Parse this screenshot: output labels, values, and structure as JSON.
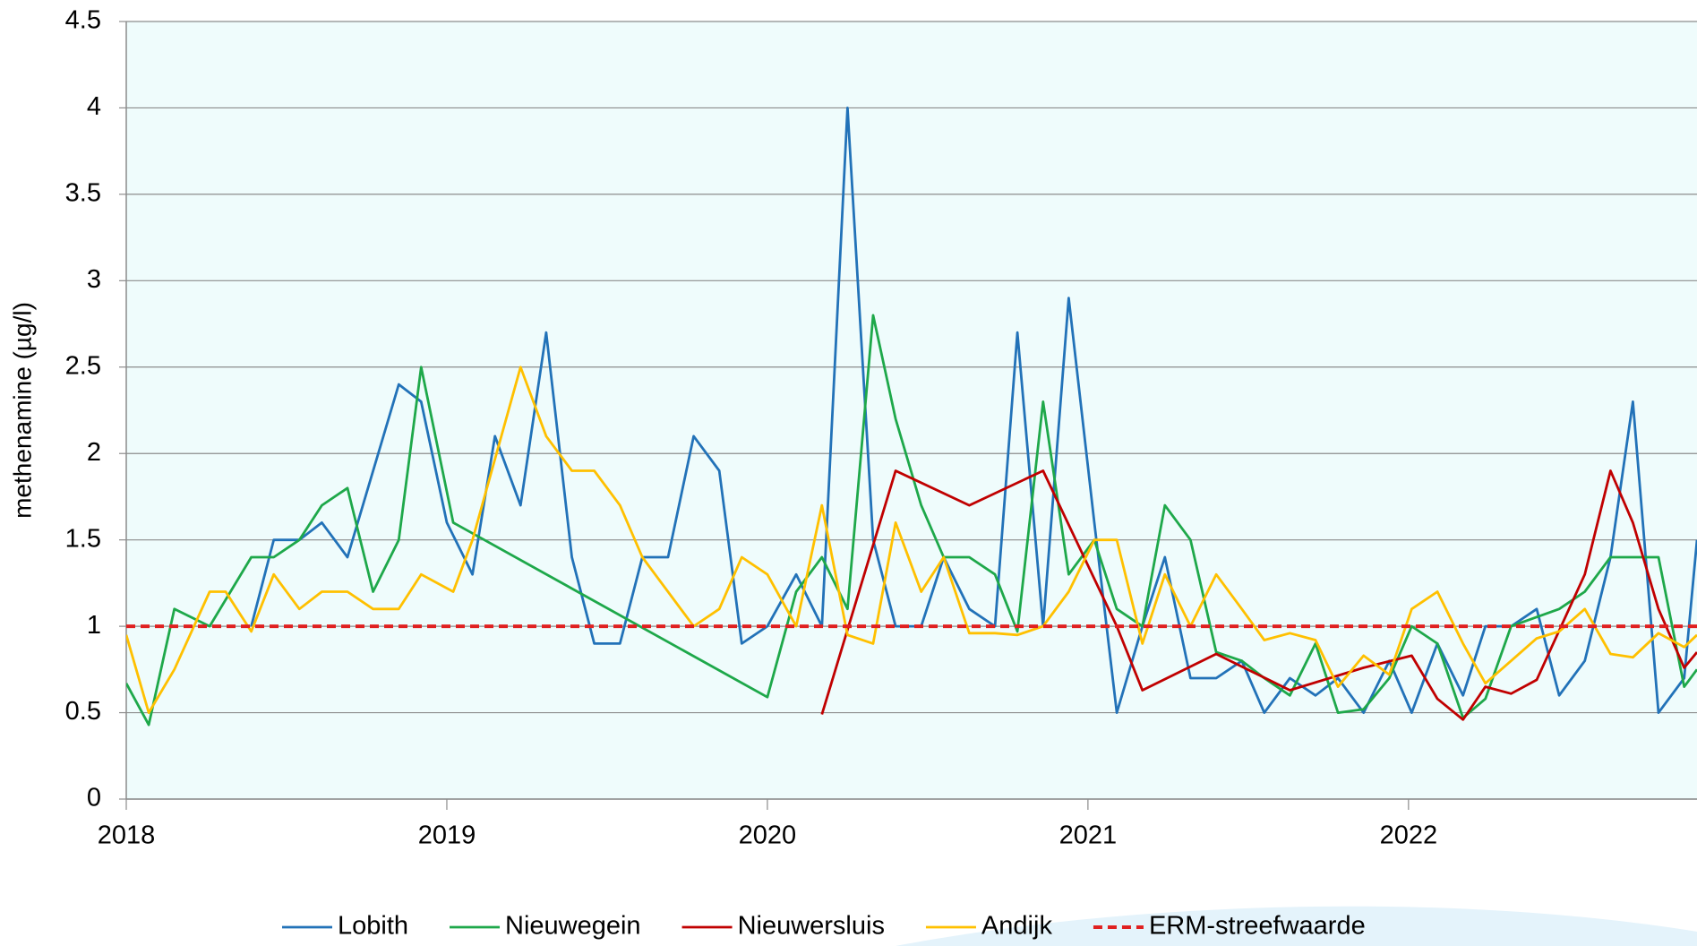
{
  "chart_data": {
    "type": "line",
    "y_label": "methenamine (µg/l)",
    "xlim": [
      2018,
      2022.9
    ],
    "xticks": [
      2018,
      2019,
      2020,
      2021,
      2022
    ],
    "ylim": [
      0,
      4.5
    ],
    "yticks": [
      0,
      0.5,
      1,
      1.5,
      2,
      2.5,
      3,
      3.5,
      4,
      4.5
    ],
    "grid": true,
    "legend": "bottom",
    "background": "#effcfc",
    "series": [
      {
        "name": "Lobith",
        "color": "#2272b8",
        "x": [
          2018.39,
          2018.46,
          2018.54,
          2018.61,
          2018.69,
          2018.85,
          2018.92,
          2019.0,
          2019.08,
          2019.15,
          2019.23,
          2019.31,
          2019.39,
          2019.46,
          2019.54,
          2019.61,
          2019.69,
          2019.77,
          2019.85,
          2019.92,
          2020.0,
          2020.09,
          2020.17,
          2020.25,
          2020.33,
          2020.4,
          2020.48,
          2020.55,
          2020.63,
          2020.71,
          2020.78,
          2020.86,
          2020.94,
          2021.02,
          2021.09,
          2021.17,
          2021.24,
          2021.32,
          2021.4,
          2021.48,
          2021.55,
          2021.63,
          2021.71,
          2021.78,
          2021.86,
          2021.94,
          2022.01,
          2022.09,
          2022.17,
          2022.24,
          2022.32,
          2022.4,
          2022.47,
          2022.55,
          2022.63,
          2022.7,
          2022.78,
          2022.86,
          2022.9
        ],
        "values": [
          1.0,
          1.5,
          1.5,
          1.6,
          1.4,
          2.4,
          2.3,
          1.6,
          1.3,
          2.1,
          1.7,
          2.7,
          1.4,
          0.9,
          0.9,
          1.4,
          1.4,
          2.1,
          1.9,
          0.9,
          1.0,
          1.3,
          1.0,
          4.0,
          1.5,
          1.0,
          1.0,
          1.4,
          1.1,
          1.0,
          2.7,
          1.0,
          2.9,
          1.6,
          0.5,
          1.0,
          1.4,
          0.7,
          0.7,
          0.8,
          0.5,
          0.7,
          0.6,
          0.7,
          0.5,
          0.8,
          0.5,
          0.9,
          0.6,
          1.0,
          1.0,
          1.1,
          0.6,
          0.8,
          1.4,
          2.3,
          0.5,
          0.7,
          1.5
        ]
      },
      {
        "name": "Nieuwegein",
        "color": "#1ea84a",
        "x": [
          2018.0,
          2018.07,
          2018.15,
          2018.26,
          2018.39,
          2018.46,
          2018.54,
          2018.61,
          2018.69,
          2018.77,
          2018.85,
          2018.92,
          2019.02,
          2020.0,
          2020.09,
          2020.17,
          2020.25,
          2020.33,
          2020.4,
          2020.48,
          2020.55,
          2020.63,
          2020.71,
          2020.78,
          2020.86,
          2020.94,
          2021.02,
          2021.09,
          2021.17,
          2021.24,
          2021.32,
          2021.4,
          2021.48,
          2021.55,
          2021.63,
          2021.71,
          2021.78,
          2021.86,
          2021.94,
          2022.01,
          2022.09,
          2022.17,
          2022.24,
          2022.32,
          2022.47,
          2022.55,
          2022.63,
          2022.7,
          2022.78,
          2022.86,
          2022.9
        ],
        "values": [
          0.67,
          0.43,
          1.1,
          1.0,
          1.4,
          1.4,
          1.5,
          1.7,
          1.8,
          1.2,
          1.5,
          2.5,
          1.6,
          0.59,
          1.2,
          1.4,
          1.1,
          2.8,
          2.2,
          1.7,
          1.4,
          1.4,
          1.3,
          0.97,
          2.3,
          1.3,
          1.5,
          1.1,
          1.0,
          1.7,
          1.5,
          0.85,
          0.8,
          0.7,
          0.6,
          0.9,
          0.5,
          0.52,
          0.7,
          1.0,
          0.9,
          0.47,
          0.58,
          1.0,
          1.1,
          1.2,
          1.4,
          1.4,
          1.4,
          0.65,
          0.75
        ]
      },
      {
        "name": "Nieuwersluis",
        "color": "#c00000",
        "x": [
          2020.17,
          2020.4,
          2020.63,
          2020.86,
          2021.09,
          2021.17,
          2021.4,
          2021.63,
          2021.86,
          2022.01,
          2022.09,
          2022.17,
          2022.24,
          2022.32,
          2022.4,
          2022.55,
          2022.63,
          2022.7,
          2022.78,
          2022.86,
          2022.9
        ],
        "values": [
          0.49,
          1.9,
          1.7,
          1.9,
          1.0,
          0.63,
          0.84,
          0.63,
          0.76,
          0.83,
          0.58,
          0.46,
          0.65,
          0.61,
          0.69,
          1.3,
          1.9,
          1.6,
          1.1,
          0.76,
          0.85
        ]
      },
      {
        "name": "Andijk",
        "color": "#ffc000",
        "x": [
          2018.0,
          2018.07,
          2018.15,
          2018.26,
          2018.31,
          2018.39,
          2018.46,
          2018.54,
          2018.61,
          2018.69,
          2018.77,
          2018.85,
          2018.92,
          2019.02,
          2019.08,
          2019.23,
          2019.31,
          2019.39,
          2019.46,
          2019.54,
          2019.61,
          2019.77,
          2019.85,
          2019.92,
          2020.0,
          2020.09,
          2020.17,
          2020.25,
          2020.33,
          2020.4,
          2020.48,
          2020.55,
          2020.63,
          2020.71,
          2020.78,
          2020.86,
          2020.94,
          2021.02,
          2021.09,
          2021.17,
          2021.24,
          2021.32,
          2021.4,
          2021.48,
          2021.55,
          2021.63,
          2021.71,
          2021.78,
          2021.86,
          2021.94,
          2022.01,
          2022.09,
          2022.17,
          2022.24,
          2022.32,
          2022.4,
          2022.47,
          2022.55,
          2022.63,
          2022.7,
          2022.78,
          2022.86,
          2022.9
        ],
        "values": [
          0.95,
          0.5,
          0.75,
          1.2,
          1.2,
          0.97,
          1.3,
          1.1,
          1.2,
          1.2,
          1.1,
          1.1,
          1.3,
          1.2,
          1.5,
          2.5,
          2.1,
          1.9,
          1.9,
          1.7,
          1.4,
          1.0,
          1.1,
          1.4,
          1.3,
          1.0,
          1.7,
          0.95,
          0.9,
          1.6,
          1.2,
          1.4,
          0.96,
          0.96,
          0.95,
          1.0,
          1.2,
          1.5,
          1.5,
          0.9,
          1.3,
          1.0,
          1.3,
          1.1,
          0.92,
          0.96,
          0.92,
          0.65,
          0.83,
          0.72,
          1.1,
          1.2,
          0.9,
          0.67,
          0.8,
          0.93,
          0.97,
          1.1,
          0.84,
          0.82,
          0.96,
          0.88,
          0.95
        ]
      },
      {
        "name": "ERM-streefwaarde",
        "color": "#e02020",
        "dashed": true,
        "x": [
          2018,
          2022.9
        ],
        "values": [
          1,
          1
        ]
      }
    ]
  }
}
